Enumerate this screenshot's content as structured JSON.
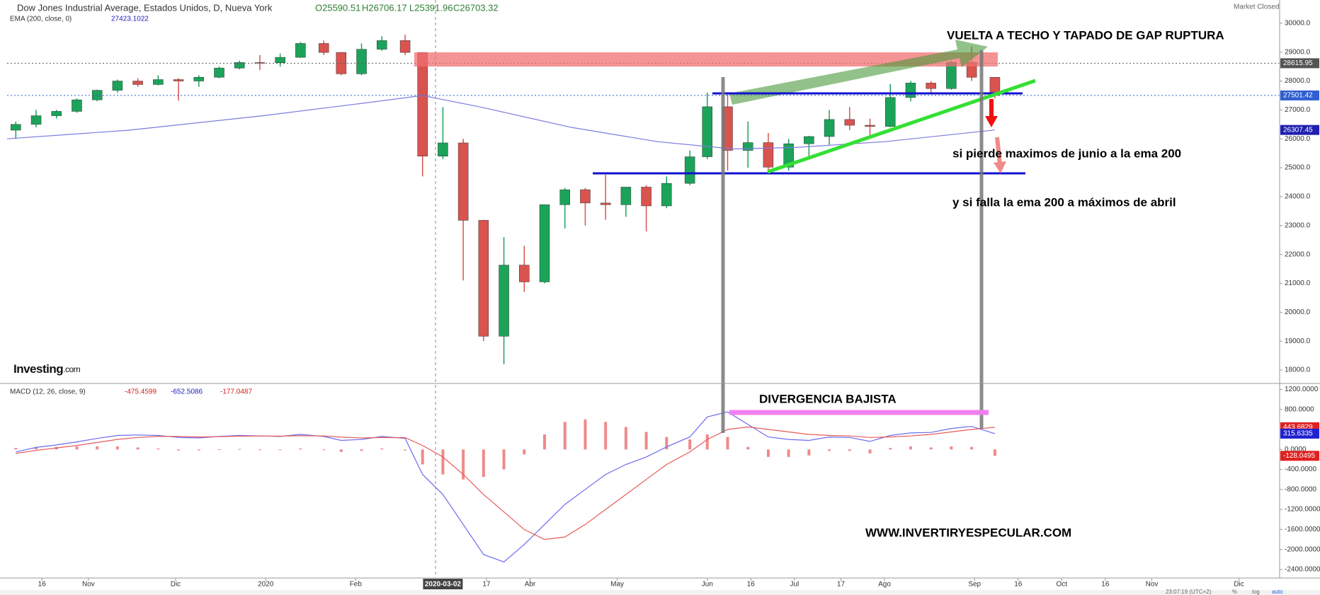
{
  "header": {
    "title": "Dow Jones Industrial Average, Estados Unidos, D, Nueva York",
    "open": "O25590.51",
    "high": "H26706.17",
    "low": "L25391.96",
    "close": "C26703.32",
    "status": "Market Closed",
    "logo": [
      "Investing",
      ".com"
    ]
  },
  "footer": {
    "time": "23:07:19 (UTC+2)",
    "buttons": [
      "%",
      "log",
      "auto"
    ]
  },
  "chart_data": [
    {
      "type": "candlestick",
      "indicator": "EMA (200, close, 0)",
      "indicator_value": 27423.1022,
      "x": [
        "2019-10-07",
        "2019-10-14",
        "2019-10-21",
        "2019-10-28",
        "2019-11-04",
        "2019-11-11",
        "2019-11-18",
        "2019-11-25",
        "2019-12-02",
        "2019-12-09",
        "2019-12-16",
        "2019-12-23",
        "2019-12-30",
        "2020-01-06",
        "2020-01-13",
        "2020-01-21",
        "2020-01-27",
        "2020-02-03",
        "2020-02-10",
        "2020-02-18",
        "2020-02-24",
        "2020-03-02",
        "2020-03-09",
        "2020-03-16",
        "2020-03-23",
        "2020-03-30",
        "2020-04-06",
        "2020-04-13",
        "2020-04-20",
        "2020-04-27",
        "2020-05-04",
        "2020-05-11",
        "2020-05-18",
        "2020-05-26",
        "2020-06-01",
        "2020-06-08",
        "2020-06-15",
        "2020-06-22",
        "2020-06-29",
        "2020-07-06",
        "2020-07-13",
        "2020-07-20",
        "2020-07-27",
        "2020-08-03",
        "2020-08-10",
        "2020-08-17",
        "2020-08-24",
        "2020-08-31",
        "2020-09-08"
      ],
      "open": [
        26300,
        26500,
        26800,
        26950,
        27350,
        27680,
        28000,
        27880,
        28050,
        28000,
        28130,
        28450,
        28640,
        28630,
        28820,
        29300,
        28990,
        28250,
        29100,
        29400,
        28990,
        25400,
        25860,
        23180,
        19170,
        21630,
        21050,
        23720,
        24240,
        23780,
        23720,
        24330,
        23680,
        24460,
        25380,
        27110,
        25600,
        25870,
        25020,
        25830,
        26080,
        26670,
        26470,
        26430,
        27430,
        27930,
        27740,
        28650,
        28130
      ],
      "high": [
        26600,
        27000,
        27000,
        27400,
        27700,
        28050,
        28100,
        28200,
        28100,
        28200,
        28500,
        28700,
        28900,
        28950,
        29350,
        29400,
        29000,
        29300,
        29550,
        29600,
        28990,
        27100,
        26000,
        23200,
        22600,
        22300,
        23700,
        24300,
        24300,
        24760,
        24300,
        24400,
        24700,
        25600,
        27600,
        27580,
        26600,
        26200,
        26000,
        26100,
        27000,
        27100,
        26700,
        27900,
        28000,
        28000,
        28700,
        29200,
        28100
      ],
      "low": [
        26000,
        26400,
        26700,
        26900,
        27300,
        27600,
        27800,
        27850,
        27320,
        27800,
        28100,
        28400,
        28380,
        28500,
        28800,
        28900,
        28200,
        28200,
        29050,
        28900,
        24700,
        25300,
        21100,
        19000,
        18200,
        20700,
        21000,
        22900,
        23000,
        23200,
        23300,
        22800,
        23600,
        24400,
        25300,
        24900,
        25000,
        24800,
        24900,
        25400,
        25800,
        26300,
        26000,
        26400,
        27300,
        27600,
        27700,
        28000,
        27400
      ],
      "close": [
        26500,
        26800,
        26950,
        27350,
        27680,
        28000,
        27880,
        28050,
        28000,
        28130,
        28450,
        28640,
        28630,
        28820,
        29300,
        28990,
        28250,
        29100,
        29400,
        28990,
        25400,
        25860,
        23180,
        19170,
        21630,
        21050,
        23720,
        24240,
        23780,
        23720,
        24330,
        23680,
        24460,
        25380,
        27110,
        25600,
        25870,
        25020,
        25830,
        26080,
        26670,
        26470,
        26430,
        27430,
        27930,
        27740,
        28650,
        28130,
        27500
      ],
      "up_color": "#1ba35a",
      "down_color": "#d9534f",
      "ema": {
        "color": "#7b7be0",
        "x": [
          "2019-10-04",
          "2019-11-15",
          "2019-12-31",
          "2020-02-01",
          "2020-02-24",
          "2020-03-15",
          "2020-04-15",
          "2020-05-15",
          "2020-06-10",
          "2020-07-01",
          "2020-08-01",
          "2020-09-08"
        ],
        "values": [
          26000,
          26300,
          26800,
          27200,
          27500,
          27100,
          26400,
          25900,
          25650,
          25700,
          25900,
          26307.45
        ]
      },
      "xlim": [
        "2019-10-04",
        "2020-12-15"
      ],
      "xticks": [
        {
          "value": "2019-10-16",
          "label": "16"
        },
        {
          "value": "2019-11-01",
          "label": "Nov"
        },
        {
          "value": "2019-12-01",
          "label": "Dic"
        },
        {
          "value": "2020-01-01",
          "label": "2020"
        },
        {
          "value": "2020-02-01",
          "label": "Feb"
        },
        {
          "value": "2020-03-17",
          "label": "17"
        },
        {
          "value": "2020-04-01",
          "label": "Abr"
        },
        {
          "value": "2020-05-01",
          "label": "May"
        },
        {
          "value": "2020-06-01",
          "label": "Jun"
        },
        {
          "value": "2020-06-16",
          "label": "16"
        },
        {
          "value": "2020-07-01",
          "label": "Jul"
        },
        {
          "value": "2020-07-17",
          "label": "17"
        },
        {
          "value": "2020-08-01",
          "label": "Ago"
        },
        {
          "value": "2020-09-01",
          "label": "Sep"
        },
        {
          "value": "2020-09-16",
          "label": "16"
        },
        {
          "value": "2020-10-01",
          "label": "Oct"
        },
        {
          "value": "2020-10-16",
          "label": "16"
        },
        {
          "value": "2020-11-01",
          "label": "Nov"
        },
        {
          "value": "2020-12-01",
          "label": "Dic"
        }
      ],
      "cursor_date": "2020-03-02",
      "ylim": [
        17560,
        30804
      ],
      "yticks": [
        {
          "value": 18000,
          "label": "18000.0"
        },
        {
          "value": 19000,
          "label": "19000.0"
        },
        {
          "value": 20000,
          "label": "20000.0"
        },
        {
          "value": 21000,
          "label": "21000.0"
        },
        {
          "value": 22000,
          "label": "22000.0"
        },
        {
          "value": 23000,
          "label": "23000.0"
        },
        {
          "value": 24000,
          "label": "24000.0"
        },
        {
          "value": 25000,
          "label": "25000.0"
        },
        {
          "value": 26000,
          "label": "26000.0"
        },
        {
          "value": 27000,
          "label": "27000.0"
        },
        {
          "value": 28000,
          "label": "28000.0"
        },
        {
          "value": 29000,
          "label": "29000.0"
        },
        {
          "value": 30000,
          "label": "30000.0"
        }
      ],
      "grid": false,
      "price_markers": [
        {
          "value": 28615.95,
          "color": "#555555"
        },
        {
          "value": 27501.42,
          "color": "#2f5fd0"
        },
        {
          "value": 26307.45,
          "color": "#1f1fb0"
        }
      ],
      "annotations": [
        "VUELTA A TECHO Y TAPADO DE GAP RUPTURA",
        "si pierde maximos de junio a la ema 200",
        "y si falla la ema 200 a máximos de abril"
      ]
    },
    {
      "type": "macd",
      "title": "MACD (12, 26, close, 9)",
      "legend_values": [
        -475.4599,
        -652.5086,
        -177.0487
      ],
      "x": [
        "2019-10-07",
        "2019-10-14",
        "2019-10-21",
        "2019-10-28",
        "2019-11-04",
        "2019-11-11",
        "2019-11-18",
        "2019-11-25",
        "2019-12-02",
        "2019-12-09",
        "2019-12-16",
        "2019-12-23",
        "2019-12-30",
        "2020-01-06",
        "2020-01-13",
        "2020-01-21",
        "2020-01-27",
        "2020-02-03",
        "2020-02-10",
        "2020-02-18",
        "2020-02-24",
        "2020-03-02",
        "2020-03-09",
        "2020-03-16",
        "2020-03-23",
        "2020-03-30",
        "2020-04-06",
        "2020-04-13",
        "2020-04-20",
        "2020-04-27",
        "2020-05-04",
        "2020-05-11",
        "2020-05-18",
        "2020-05-26",
        "2020-06-01",
        "2020-06-08",
        "2020-06-15",
        "2020-06-22",
        "2020-06-29",
        "2020-07-06",
        "2020-07-13",
        "2020-07-20",
        "2020-07-27",
        "2020-08-03",
        "2020-08-10",
        "2020-08-17",
        "2020-08-24",
        "2020-08-31",
        "2020-09-08"
      ],
      "series": [
        {
          "color": "#6b6bf0",
          "values": [
            -50,
            40,
            90,
            150,
            220,
            280,
            290,
            280,
            240,
            230,
            260,
            280,
            270,
            260,
            300,
            260,
            180,
            200,
            260,
            220,
            -500,
            -900,
            -1500,
            -2100,
            -2250,
            -1900,
            -1500,
            -1100,
            -800,
            -500,
            -300,
            -150,
            50,
            250,
            650,
            750,
            500,
            250,
            200,
            180,
            250,
            240,
            160,
            280,
            330,
            340,
            420,
            460,
            315.6335
          ]
        },
        {
          "color": "#e85a5a",
          "values": [
            -80,
            -20,
            30,
            80,
            140,
            200,
            240,
            260,
            260,
            250,
            255,
            265,
            268,
            265,
            275,
            270,
            245,
            230,
            238,
            235,
            80,
            -150,
            -500,
            -900,
            -1250,
            -1600,
            -1800,
            -1750,
            -1500,
            -1200,
            -900,
            -600,
            -300,
            -50,
            200,
            400,
            450,
            400,
            350,
            300,
            280,
            270,
            240,
            250,
            270,
            300,
            350,
            400,
            443.6829
          ]
        }
      ],
      "histogram": {
        "color": "#ef8a8a",
        "values": [
          30,
          50,
          50,
          60,
          60,
          60,
          40,
          20,
          -20,
          -20,
          5,
          10,
          0,
          -5,
          20,
          -10,
          -50,
          -30,
          20,
          -20,
          -300,
          -500,
          -600,
          -550,
          -400,
          -100,
          300,
          550,
          600,
          550,
          450,
          350,
          250,
          200,
          300,
          250,
          50,
          -150,
          -150,
          -120,
          -30,
          -30,
          -80,
          30,
          60,
          40,
          60,
          50,
          -128.0495
        ]
      },
      "ylim": [
        -2571,
        1305
      ],
      "yticks": [
        {
          "value": 1200,
          "label": "1200.0000"
        },
        {
          "value": 800,
          "label": "800.0000"
        },
        {
          "value": 400,
          "label": "400.0000"
        },
        {
          "value": 0,
          "label": "0.0000"
        },
        {
          "value": -400,
          "label": "-400.0000"
        },
        {
          "value": -800,
          "label": "-800.0000"
        },
        {
          "value": -1200,
          "label": "-1200.0000"
        },
        {
          "value": -1600,
          "label": "-1600.0000"
        },
        {
          "value": -2000,
          "label": "-2000.0000"
        },
        {
          "value": -2400,
          "label": "-2400.0000"
        }
      ],
      "markers": [
        {
          "value": 443.6829,
          "color": "#e02020"
        },
        {
          "value": 315.6335,
          "color": "#2020d0"
        },
        {
          "value": -128.0495,
          "color": "#e02020"
        }
      ],
      "annotations": [
        "DIVERGENCIA BAJISTA",
        "WWW.INVERTIRYESPECULAR.COM"
      ]
    }
  ]
}
